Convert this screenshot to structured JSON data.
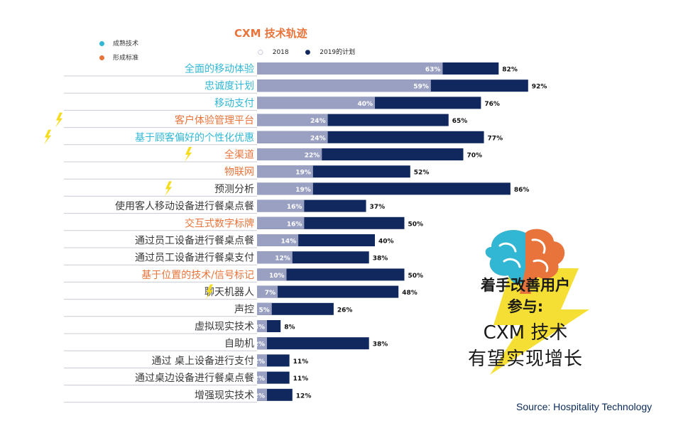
{
  "chart_data": {
    "type": "bar",
    "title": "CXM 技术轨迹",
    "legend": {
      "status": [
        {
          "label": "成熟技术",
          "color": "#31b7d4"
        },
        {
          "label": "形成标准",
          "color": "#e8743b"
        }
      ],
      "years": [
        {
          "label": "2018",
          "marker": "○",
          "color": "#9aa0c2"
        },
        {
          "label": "2019的计划",
          "marker": "●",
          "color": "#10285e"
        }
      ]
    },
    "categories": [
      "全面的移动体验",
      "忠诚度计划",
      "移动支付",
      "客户体验管理平台",
      "基于顾客偏好的个性化优惠",
      "全渠道",
      "物联网",
      "预测分析",
      "使用客人移动设备进行餐桌点餐",
      "交互式数字标牌",
      "通过员工设备进行餐桌点餐",
      "通过员工设备进行餐桌支付",
      "基于位置的技术/信号标记",
      "聊天机器人",
      "声控",
      "虚拟现实技术",
      "自助机",
      "通过 桌上设备进行支付",
      "通过桌边设备进行餐桌点餐",
      "增强现实技术"
    ],
    "category_status": [
      "mature",
      "mature",
      "mature",
      "standard",
      "mature",
      "standard",
      "standard",
      "none",
      "none",
      "standard",
      "none",
      "none",
      "standard",
      "none",
      "none",
      "none",
      "none",
      "none",
      "none",
      "none"
    ],
    "lightning_marks": [
      3,
      4,
      5,
      7,
      13
    ],
    "series": [
      {
        "name": "2018",
        "values": [
          63,
          59,
          40,
          24,
          24,
          22,
          19,
          19,
          16,
          16,
          14,
          12,
          10,
          7,
          5,
          3,
          2,
          2,
          2,
          2
        ],
        "color": "#9aa0c2"
      },
      {
        "name": "2019的计划",
        "values": [
          82,
          92,
          76,
          65,
          77,
          70,
          52,
          86,
          37,
          50,
          40,
          38,
          50,
          48,
          26,
          8,
          38,
          11,
          11,
          12
        ],
        "color": "#10285e"
      }
    ],
    "value_suffix": "%",
    "xlim": [
      0,
      100
    ]
  },
  "colors": {
    "mature": "#31b7d4",
    "standard": "#e8743b",
    "none": "#3a3a3a",
    "bar2018": "#9aa0c2",
    "bar2019": "#10285e",
    "lightning": "#f5dc1e"
  },
  "callout": {
    "line1": "着手改善用户",
    "line2": "参与:",
    "line3": "CXM 技术",
    "line4": "有望实现增长",
    "icon": "brain-icon"
  },
  "source": "Source: Hospitality Technology"
}
